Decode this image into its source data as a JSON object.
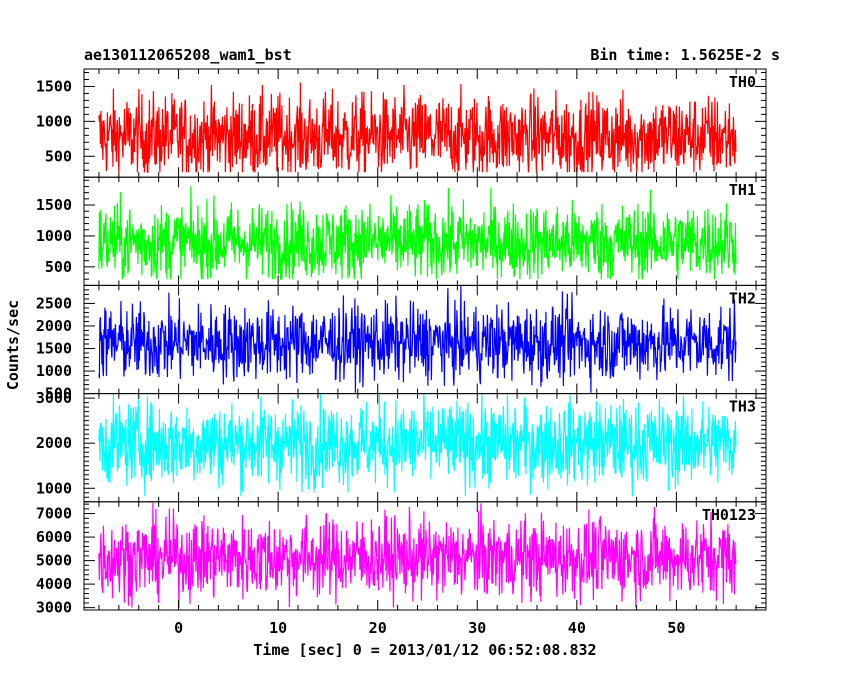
{
  "header": {
    "title": "ae130112065208_wam1_bst",
    "bin_time": "Bin time: 1.5625E-2 s"
  },
  "chart_data": {
    "type": "line",
    "title": "ae130112065208_wam1_bst",
    "subtitle": "Bin time: 1.5625E-2 s",
    "xlabel": "Time [sec] 0 = 2013/01/12 06:52:08.832",
    "ylabel": "Counts/sec",
    "xlim": [
      -9.5,
      59
    ],
    "x_data_range": [
      -8,
      56
    ],
    "xticks": [
      0,
      10,
      20,
      30,
      40,
      50
    ],
    "grid": false,
    "panels": [
      {
        "name": "TH0",
        "color": "#ff0000",
        "ylim": [
          200,
          1750
        ],
        "yticks": [
          500,
          1000,
          1500
        ],
        "mean": 780,
        "spread": 300,
        "min": 270,
        "max": 1750
      },
      {
        "name": "TH1",
        "color": "#00ff00",
        "ylim": [
          200,
          1950
        ],
        "yticks": [
          500,
          1000,
          1500
        ],
        "mean": 900,
        "spread": 310,
        "min": 300,
        "max": 1950
      },
      {
        "name": "TH2",
        "color": "#0000ff",
        "ylim": [
          500,
          2900
        ],
        "yticks": [
          500,
          1000,
          1500,
          2000,
          2500
        ],
        "mean": 1630,
        "spread": 420,
        "min": 520,
        "max": 2900
      },
      {
        "name": "TH3",
        "color": "#00ffff",
        "ylim": [
          700,
          3100
        ],
        "yticks": [
          1000,
          2000,
          3000
        ],
        "mean": 2000,
        "spread": 460,
        "min": 820,
        "max": 3100
      },
      {
        "name": "TH0123",
        "color": "#ff00ff",
        "ylim": [
          2900,
          7500
        ],
        "yticks": [
          3000,
          4000,
          5000,
          6000,
          7000
        ],
        "mean": 5130,
        "spread": 850,
        "min": 3000,
        "max": 7500
      }
    ]
  }
}
